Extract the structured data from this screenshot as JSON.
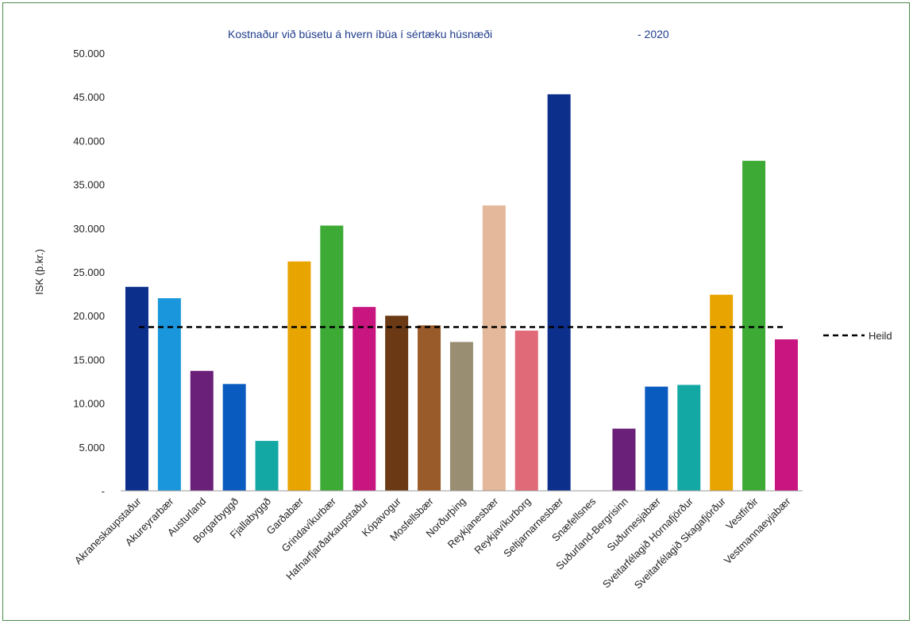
{
  "chart_data": {
    "type": "bar",
    "title": "Kostnaður við búsetu á hvern íbúa í sértæku húsnæði",
    "title_year": "- 2020",
    "ylabel": "ISK (þ.kr.)",
    "xlabel": "",
    "ylim": [
      0,
      50000
    ],
    "yticks": [
      0,
      5000,
      10000,
      15000,
      20000,
      25000,
      30000,
      35000,
      40000,
      45000,
      50000
    ],
    "ytick_labels": [
      "-",
      "5.000",
      "10.000",
      "15.000",
      "20.000",
      "25.000",
      "30.000",
      "35.000",
      "40.000",
      "45.000",
      "50.000"
    ],
    "grid": false,
    "categories": [
      "Akraneskaupstaður",
      "Akureyrarbær",
      "Austurland",
      "Borgarbyggð",
      "Fjallabyggð",
      "Garðabær",
      "Grindavíkurbær",
      "Hafnarfjarðarkaupstaður",
      "Kópavogur",
      "Mosfellsbær",
      "Norðurþing",
      "Reykjanesbær",
      "Reykjavíkurborg",
      "Seltjarnarnesbær",
      "Snæfellsnes",
      "Suðurland-Bergrisinn",
      "Suðurnesjabær",
      "Sveitarfélagið Hornafjörður",
      "Sveitarfélagið Skagafjörður",
      "Vestfirðir",
      "Vestmannaeyjabær"
    ],
    "values": [
      23300,
      22000,
      13700,
      12200,
      5700,
      26200,
      30300,
      21000,
      20000,
      18900,
      17000,
      32600,
      18300,
      45300,
      0,
      7100,
      11900,
      12100,
      22400,
      37700,
      17300
    ],
    "colors": [
      "#0d2f8c",
      "#1a97dc",
      "#6a1f78",
      "#0a5bbf",
      "#14a8a4",
      "#e8a400",
      "#3daa35",
      "#c8157f",
      "#6b3a15",
      "#9a5b2a",
      "#9a8e72",
      "#e4b89a",
      "#e06a78",
      "#0d2f8c",
      "#ffffff",
      "#6a1f78",
      "#0a5bbf",
      "#14a8a4",
      "#e8a400",
      "#3daa35",
      "#c8157f"
    ],
    "reference_line": {
      "name": "Heild",
      "value": 18700,
      "style": "dashed",
      "color": "#000000"
    },
    "legend": {
      "placement": "right",
      "entries": [
        "Heild"
      ]
    }
  }
}
